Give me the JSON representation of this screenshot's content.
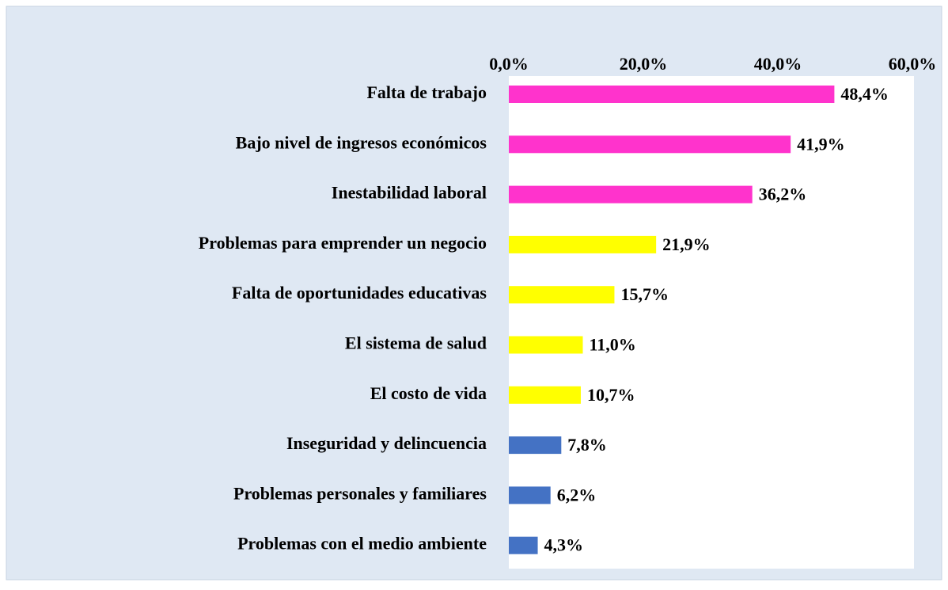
{
  "chart_data": {
    "type": "barh",
    "categories": [
      "Falta de trabajo",
      "Bajo nivel de ingresos económicos",
      "Inestabilidad laboral",
      "Problemas para emprender un negocio",
      "Falta de oportunidades educativas",
      "El sistema de salud",
      "El costo de vida",
      "Inseguridad y delincuencia",
      "Problemas personales y familiares",
      "Problemas con el medio ambiente"
    ],
    "values": [
      48.4,
      41.9,
      36.2,
      21.9,
      15.7,
      11.0,
      10.7,
      7.8,
      6.2,
      4.3
    ],
    "value_labels": [
      "48,4%",
      "41,9%",
      "36,2%",
      "21,9%",
      "15,7%",
      "11,0%",
      "10,7%",
      "7,8%",
      "6,2%",
      "4,3%"
    ],
    "colors": [
      "#ff33cc",
      "#ff33cc",
      "#ff33cc",
      "#ffff00",
      "#ffff00",
      "#ffff00",
      "#ffff00",
      "#4472c4",
      "#4472c4",
      "#4472c4"
    ],
    "xlim": [
      0,
      60
    ],
    "xticks": [
      {
        "value": 0,
        "label": "0,0%"
      },
      {
        "value": 20,
        "label": "20,0%"
      },
      {
        "value": 40,
        "label": "40,0%"
      },
      {
        "value": 60,
        "label": "60,0%"
      }
    ]
  }
}
